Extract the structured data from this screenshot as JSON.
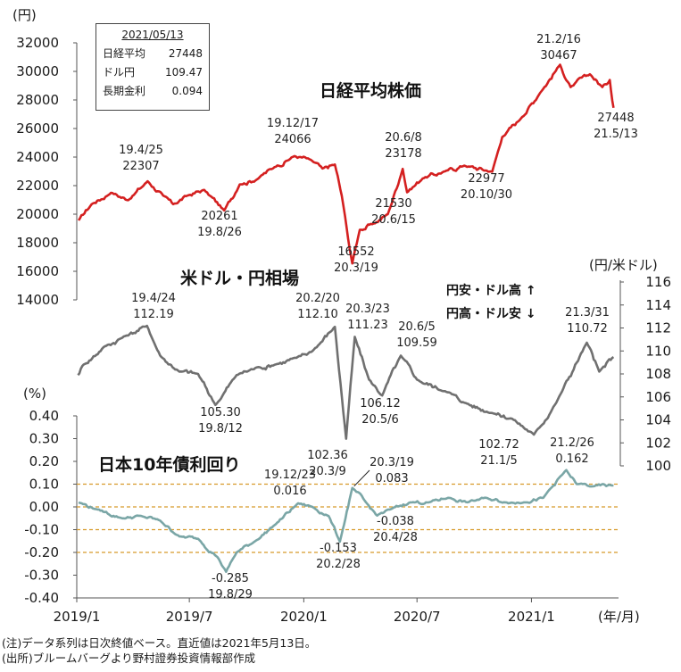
{
  "info_box": {
    "date": "2021/05/13",
    "rows": [
      {
        "label": "日経平均",
        "value": "27448"
      },
      {
        "label": "ドル円",
        "value": "109.47"
      },
      {
        "label": "長期金利",
        "value": "0.094"
      }
    ]
  },
  "notes": [
    "(注)データ系列は日次終値ベース。直近値は2021年5月13日。",
    "(出所)ブルームバーグより野村證券投資情報部作成"
  ],
  "chart_data": [
    {
      "type": "line",
      "title": "日経平均株価",
      "unit": "(円)",
      "color": "#d42020",
      "yticks": [
        "32000",
        "30000",
        "28000",
        "26000",
        "24000",
        "22000",
        "20000",
        "18000",
        "16000",
        "14000"
      ],
      "ylim": [
        14000,
        32000
      ],
      "xticks": [
        "2019/1",
        "2019/7",
        "2020/1",
        "2020/7",
        "2021/1"
      ],
      "xunit": "(年/月)",
      "points": [
        [
          "2019-01-04",
          19562
        ],
        [
          "2019-01-25",
          20700
        ],
        [
          "2019-02-25",
          21500
        ],
        [
          "2019-03-25",
          20980
        ],
        [
          "2019-04-25",
          22307
        ],
        [
          "2019-05-20",
          21300
        ],
        [
          "2019-06-05",
          20700
        ],
        [
          "2019-06-28",
          21300
        ],
        [
          "2019-07-25",
          21700
        ],
        [
          "2019-08-26",
          20261
        ],
        [
          "2019-09-20",
          22080
        ],
        [
          "2019-10-20",
          22500
        ],
        [
          "2019-11-15",
          23300
        ],
        [
          "2019-12-17",
          24066
        ],
        [
          "2020-01-10",
          23850
        ],
        [
          "2020-01-31",
          23200
        ],
        [
          "2020-02-20",
          23480
        ],
        [
          "2020-03-02",
          21300
        ],
        [
          "2020-03-10",
          19000
        ],
        [
          "2020-03-19",
          16552
        ],
        [
          "2020-03-31",
          18900
        ],
        [
          "2020-04-20",
          19300
        ],
        [
          "2020-05-15",
          20000
        ],
        [
          "2020-06-08",
          23178
        ],
        [
          "2020-06-15",
          21530
        ],
        [
          "2020-07-10",
          22500
        ],
        [
          "2020-08-15",
          23000
        ],
        [
          "2020-09-15",
          23400
        ],
        [
          "2020-10-30",
          22977
        ],
        [
          "2020-11-15",
          25400
        ],
        [
          "2020-12-15",
          26700
        ],
        [
          "2021-01-15",
          28500
        ],
        [
          "2021-02-16",
          30467
        ],
        [
          "2021-03-05",
          28900
        ],
        [
          "2021-04-05",
          29800
        ],
        [
          "2021-04-25",
          28900
        ],
        [
          "2021-05-07",
          29400
        ],
        [
          "2021-05-13",
          27448
        ]
      ],
      "annotations": [
        {
          "label": "19.4/25",
          "value": "22307"
        },
        {
          "label": "19.8/26",
          "value": "20261"
        },
        {
          "label": "19.12/17",
          "value": "24066"
        },
        {
          "label": "20.3/19",
          "value": "16552"
        },
        {
          "label": "20.6/8",
          "value": "23178"
        },
        {
          "label": "20.6/15",
          "value": "21530"
        },
        {
          "label": "20.10/30",
          "value": "22977"
        },
        {
          "label": "21.2/16",
          "value": "30467"
        },
        {
          "label": "21.5/13",
          "value": "27448"
        }
      ]
    },
    {
      "type": "line",
      "title": "米ドル・円相場",
      "unit": "(円/米ドル)",
      "color": "#707070",
      "yticks": [
        "116",
        "114",
        "112",
        "110",
        "108",
        "106",
        "104",
        "102",
        "100"
      ],
      "ylim": [
        100,
        116
      ],
      "legend_up": "円安・ドル高 ↑",
      "legend_down": "円高・ドル安 ↓",
      "points": [
        [
          "2019-01-03",
          107.9
        ],
        [
          "2019-01-10",
          108.7
        ],
        [
          "2019-02-15",
          110.4
        ],
        [
          "2019-03-20",
          111.3
        ],
        [
          "2019-04-24",
          112.19
        ],
        [
          "2019-05-15",
          109.6
        ],
        [
          "2019-06-15",
          108.2
        ],
        [
          "2019-07-15",
          108.0
        ],
        [
          "2019-08-12",
          105.3
        ],
        [
          "2019-09-15",
          107.9
        ],
        [
          "2019-10-20",
          108.6
        ],
        [
          "2019-11-15",
          108.8
        ],
        [
          "2019-12-20",
          109.4
        ],
        [
          "2020-01-15",
          110.0
        ],
        [
          "2020-02-20",
          112.1
        ],
        [
          "2020-03-09",
          102.36
        ],
        [
          "2020-03-23",
          111.23
        ],
        [
          "2020-04-15",
          107.5
        ],
        [
          "2020-05-06",
          106.12
        ],
        [
          "2020-06-05",
          109.59
        ],
        [
          "2020-07-01",
          107.5
        ],
        [
          "2020-08-15",
          106.5
        ],
        [
          "2020-09-15",
          105.5
        ],
        [
          "2020-10-30",
          104.6
        ],
        [
          "2020-12-01",
          104.1
        ],
        [
          "2021-01-05",
          102.72
        ],
        [
          "2021-02-10",
          105.5
        ],
        [
          "2021-03-31",
          110.72
        ],
        [
          "2021-04-20",
          108.2
        ],
        [
          "2021-05-13",
          109.47
        ]
      ],
      "annotations": [
        {
          "label": "19.4/24",
          "value": "112.19"
        },
        {
          "label": "19.8/12",
          "value": "105.30"
        },
        {
          "label": "20.2/20",
          "value": "112.10"
        },
        {
          "label": "20.3/9",
          "value": "102.36"
        },
        {
          "label": "20.3/23",
          "value": "111.23"
        },
        {
          "label": "20.5/6",
          "value": "106.12"
        },
        {
          "label": "20.6/5",
          "value": "109.59"
        },
        {
          "label": "21.1/5",
          "value": "102.72"
        },
        {
          "label": "21.3/31",
          "value": "110.72"
        }
      ]
    },
    {
      "type": "line",
      "title": "日本10年債利回り",
      "unit": "(%)",
      "color": "#7aa6a6",
      "yticks": [
        "0.40",
        "0.30",
        "0.20",
        "0.10",
        "0.00",
        "-0.10",
        "-0.20",
        "-0.30",
        "-0.40"
      ],
      "ylim": [
        -0.4,
        0.4
      ],
      "reference_lines": [
        0.1,
        0.0,
        -0.1,
        -0.2
      ],
      "reference_color": "#d79a2a",
      "points": [
        [
          "2019-01-04",
          0.02
        ],
        [
          "2019-02-01",
          -0.01
        ],
        [
          "2019-03-15",
          -0.05
        ],
        [
          "2019-04-15",
          -0.04
        ],
        [
          "2019-05-15",
          -0.06
        ],
        [
          "2019-06-15",
          -0.13
        ],
        [
          "2019-07-15",
          -0.14
        ],
        [
          "2019-08-15",
          -0.22
        ],
        [
          "2019-08-29",
          -0.285
        ],
        [
          "2019-09-15",
          -0.2
        ],
        [
          "2019-10-15",
          -0.15
        ],
        [
          "2019-11-15",
          -0.08
        ],
        [
          "2019-12-23",
          0.016
        ],
        [
          "2020-01-15",
          0.0
        ],
        [
          "2020-02-10",
          -0.04
        ],
        [
          "2020-02-28",
          -0.153
        ],
        [
          "2020-03-19",
          0.083
        ],
        [
          "2020-04-10",
          0.02
        ],
        [
          "2020-04-28",
          -0.038
        ],
        [
          "2020-05-20",
          -0.01
        ],
        [
          "2020-06-20",
          0.02
        ],
        [
          "2020-07-20",
          0.02
        ],
        [
          "2020-08-20",
          0.04
        ],
        [
          "2020-09-20",
          0.02
        ],
        [
          "2020-10-20",
          0.04
        ],
        [
          "2020-11-20",
          0.02
        ],
        [
          "2020-12-20",
          0.02
        ],
        [
          "2021-01-20",
          0.04
        ],
        [
          "2021-02-26",
          0.162
        ],
        [
          "2021-03-15",
          0.1
        ],
        [
          "2021-04-10",
          0.09
        ],
        [
          "2021-05-13",
          0.094
        ]
      ],
      "annotations": [
        {
          "label": "19.8/29",
          "value": "-0.285"
        },
        {
          "label": "19.12/23",
          "value": "0.016"
        },
        {
          "label": "20.2/28",
          "value": "-0.153"
        },
        {
          "label": "20.3/19",
          "value": "0.083"
        },
        {
          "label": "20.4/28",
          "value": "-0.038"
        },
        {
          "label": "21.2/26",
          "value": "0.162"
        }
      ]
    }
  ]
}
